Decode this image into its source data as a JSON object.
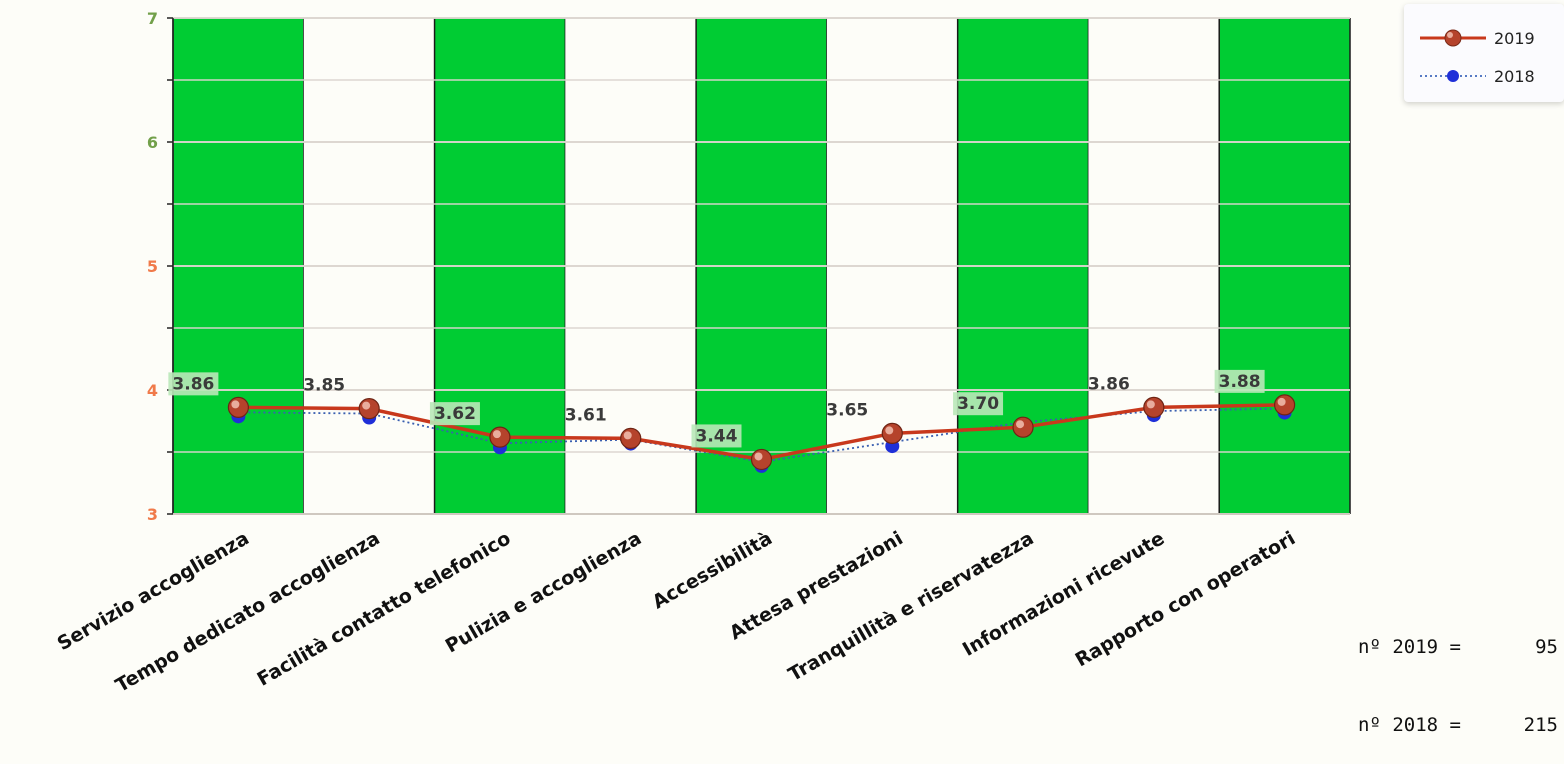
{
  "chart_data": {
    "type": "line",
    "categories": [
      "Servizio accoglienza",
      "Tempo dedicato accoglienza",
      "Facilità contatto telefonico",
      "Pulizia e accoglienza",
      "Accessibilità",
      "Attesa prestazioni",
      "Tranquillità e riservatezza",
      "Informazioni ricevute",
      "Rapporto con operatori"
    ],
    "series": [
      {
        "name": "2019",
        "values": [
          3.86,
          3.85,
          3.62,
          3.61,
          3.44,
          3.65,
          3.7,
          3.86,
          3.88
        ],
        "labels": [
          "3.86",
          "3.85",
          "3.62",
          "3.61",
          "3.44",
          "3.65",
          "3.70",
          "3.86",
          "3.88"
        ],
        "color": "#c8381c",
        "style": "solid"
      },
      {
        "name": "2018",
        "values": [
          3.82,
          3.81,
          3.57,
          3.6,
          3.42,
          3.58,
          3.74,
          3.83,
          3.85
        ],
        "color": "#1f2fd8",
        "style": "dotted"
      }
    ],
    "yticks": [
      "3",
      "4",
      "5",
      "6",
      "7"
    ],
    "ylim": [
      3,
      7
    ],
    "y_minor_step": 0.5,
    "grid": true,
    "legend_position": "top-right",
    "band_colors": [
      "#00cc33",
      "#fdfdf8"
    ],
    "ytick_colors": [
      "#f07a4a",
      "#f07a4a",
      "#f07a4a",
      "#72a04a",
      "#72a04a"
    ]
  },
  "counts": [
    {
      "label": "nº 2019 =",
      "value": "95"
    },
    {
      "label": "nº 2018 =",
      "value": "215"
    }
  ]
}
